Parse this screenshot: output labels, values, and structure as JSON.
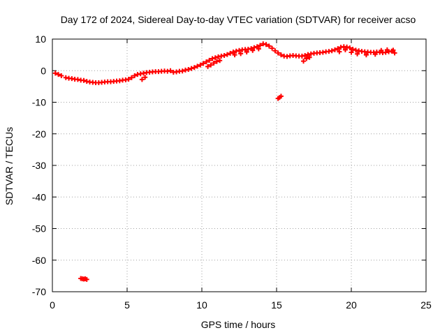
{
  "chart_data": {
    "type": "scatter",
    "title": "Day 172 of 2024, Sidereal Day-to-day VTEC variation (SDTVAR) for receiver acso",
    "xlabel": "GPS time / hours",
    "ylabel": "SDTVAR / TECUs",
    "xlim": [
      0,
      25
    ],
    "ylim": [
      -70,
      10
    ],
    "xticks": [
      0,
      5,
      10,
      15,
      20,
      25
    ],
    "yticks": [
      10,
      0,
      -10,
      -20,
      -30,
      -40,
      -50,
      -60,
      -70
    ],
    "grid": true,
    "marker": "plus",
    "color": "#ff0000",
    "series": [
      {
        "name": "SDTVAR",
        "points": [
          [
            0.2,
            -0.8
          ],
          [
            0.4,
            -1.2
          ],
          [
            0.6,
            -1.6
          ],
          [
            0.9,
            -2.2
          ],
          [
            1.1,
            -2.4
          ],
          [
            1.3,
            -2.5
          ],
          [
            1.5,
            -2.7
          ],
          [
            1.7,
            -2.8
          ],
          [
            1.9,
            -3.0
          ],
          [
            2.1,
            -3.1
          ],
          [
            2.3,
            -3.4
          ],
          [
            2.5,
            -3.6
          ],
          [
            2.7,
            -3.7
          ],
          [
            2.9,
            -3.8
          ],
          [
            3.1,
            -3.8
          ],
          [
            3.3,
            -3.7
          ],
          [
            3.5,
            -3.6
          ],
          [
            3.7,
            -3.5
          ],
          [
            3.9,
            -3.5
          ],
          [
            4.1,
            -3.4
          ],
          [
            4.3,
            -3.3
          ],
          [
            4.5,
            -3.2
          ],
          [
            4.7,
            -3.0
          ],
          [
            4.9,
            -2.9
          ],
          [
            5.1,
            -2.7
          ],
          [
            5.3,
            -2.2
          ],
          [
            5.5,
            -1.6
          ],
          [
            5.7,
            -1.2
          ],
          [
            5.9,
            -1.0
          ],
          [
            6.1,
            -0.8
          ],
          [
            6.3,
            -0.6
          ],
          [
            6.5,
            -0.5
          ],
          [
            6.7,
            -0.4
          ],
          [
            6.9,
            -0.3
          ],
          [
            7.1,
            -0.3
          ],
          [
            7.3,
            -0.2
          ],
          [
            7.5,
            -0.1
          ],
          [
            7.7,
            -0.2
          ],
          [
            7.9,
            0.0
          ],
          [
            8.1,
            -0.5
          ],
          [
            8.3,
            -0.4
          ],
          [
            8.5,
            -0.2
          ],
          [
            8.7,
            -0.1
          ],
          [
            8.9,
            0.2
          ],
          [
            9.1,
            0.4
          ],
          [
            9.3,
            0.7
          ],
          [
            9.5,
            1.0
          ],
          [
            9.7,
            1.4
          ],
          [
            9.9,
            1.8
          ],
          [
            10.1,
            2.3
          ],
          [
            10.3,
            2.8
          ],
          [
            10.5,
            3.3
          ],
          [
            10.7,
            3.8
          ],
          [
            10.9,
            4.1
          ],
          [
            11.1,
            4.4
          ],
          [
            11.3,
            4.6
          ],
          [
            11.5,
            4.8
          ],
          [
            11.7,
            5.1
          ],
          [
            11.9,
            5.5
          ],
          [
            12.1,
            5.9
          ],
          [
            12.3,
            6.2
          ],
          [
            12.5,
            6.4
          ],
          [
            12.7,
            6.6
          ],
          [
            12.9,
            6.7
          ],
          [
            13.1,
            6.8
          ],
          [
            13.3,
            7.0
          ],
          [
            13.5,
            7.3
          ],
          [
            13.7,
            7.6
          ],
          [
            13.9,
            8.0
          ],
          [
            14.1,
            8.5
          ],
          [
            14.3,
            8.3
          ],
          [
            14.5,
            7.8
          ],
          [
            14.7,
            7.1
          ],
          [
            14.9,
            6.3
          ],
          [
            15.1,
            5.6
          ],
          [
            15.3,
            5.0
          ],
          [
            15.5,
            4.6
          ],
          [
            15.7,
            4.5
          ],
          [
            15.9,
            4.7
          ],
          [
            16.1,
            4.8
          ],
          [
            16.3,
            4.7
          ],
          [
            16.5,
            4.6
          ],
          [
            16.7,
            4.6
          ],
          [
            16.9,
            4.8
          ],
          [
            17.1,
            5.1
          ],
          [
            17.3,
            5.3
          ],
          [
            17.5,
            5.5
          ],
          [
            17.7,
            5.6
          ],
          [
            17.9,
            5.7
          ],
          [
            18.1,
            5.8
          ],
          [
            18.3,
            6.0
          ],
          [
            18.5,
            6.1
          ],
          [
            18.7,
            6.3
          ],
          [
            18.9,
            6.6
          ],
          [
            19.1,
            7.0
          ],
          [
            19.3,
            7.4
          ],
          [
            19.5,
            7.6
          ],
          [
            19.7,
            7.5
          ],
          [
            19.9,
            7.2
          ],
          [
            20.1,
            6.8
          ],
          [
            20.3,
            6.5
          ],
          [
            20.5,
            6.3
          ],
          [
            20.7,
            6.1
          ],
          [
            20.9,
            6.0
          ],
          [
            21.1,
            5.9
          ],
          [
            21.3,
            5.8
          ],
          [
            21.5,
            5.8
          ],
          [
            21.7,
            5.9
          ],
          [
            21.9,
            5.8
          ],
          [
            22.1,
            5.7
          ],
          [
            22.3,
            5.8
          ],
          [
            22.5,
            6.0
          ],
          [
            22.7,
            6.2
          ],
          [
            22.9,
            5.6
          ],
          [
            10.4,
            1.3
          ],
          [
            10.6,
            1.8
          ],
          [
            10.8,
            2.4
          ],
          [
            11.0,
            2.9
          ],
          [
            11.2,
            3.2
          ],
          [
            12.2,
            5.0
          ],
          [
            12.6,
            5.4
          ],
          [
            13.0,
            5.9
          ],
          [
            13.4,
            6.4
          ],
          [
            13.8,
            6.9
          ],
          [
            16.8,
            3.0
          ],
          [
            17.0,
            3.8
          ],
          [
            17.2,
            4.2
          ],
          [
            6.0,
            -2.8
          ],
          [
            6.2,
            -2.1
          ],
          [
            19.2,
            6.0
          ],
          [
            19.6,
            6.6
          ],
          [
            20.0,
            5.8
          ],
          [
            20.4,
            5.3
          ],
          [
            21.0,
            5.0
          ],
          [
            21.6,
            5.2
          ],
          [
            22.0,
            6.4
          ],
          [
            22.4,
            6.6
          ],
          [
            22.8,
            6.5
          ],
          [
            15.1,
            -8.8
          ],
          [
            15.2,
            -8.5
          ],
          [
            15.3,
            -8.1
          ],
          [
            1.9,
            -65.8
          ],
          [
            2.0,
            -65.9
          ],
          [
            2.1,
            -66.0
          ],
          [
            2.2,
            -65.9
          ],
          [
            2.3,
            -66.1
          ]
        ]
      }
    ]
  }
}
